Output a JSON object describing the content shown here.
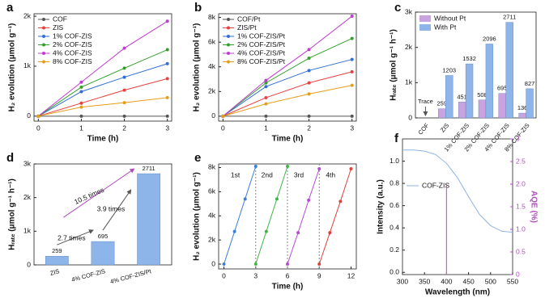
{
  "chart_data": [
    {
      "type": "line",
      "panel": "a",
      "x_label": "Time (h)",
      "y_label": "H₂ evolution (μmol g⁻¹)",
      "x": [
        0,
        1,
        2,
        3
      ],
      "xlim": [
        -0.1,
        3.1
      ],
      "xticks": [
        0,
        1,
        2,
        3
      ],
      "ylim": [
        -100,
        2050
      ],
      "yticks": [
        0,
        {
          "value": 1000,
          "label": "1k"
        },
        {
          "value": 2000,
          "label": "2k"
        }
      ],
      "legend": "upper left",
      "series": [
        {
          "name": "COF",
          "color": "#555555",
          "values": [
            0,
            0,
            0,
            0
          ]
        },
        {
          "name": "ZIS",
          "color": "#e8413d",
          "values": [
            0,
            260,
            520,
            750
          ]
        },
        {
          "name": "1% COF-ZIS",
          "color": "#2f6fd6",
          "values": [
            0,
            490,
            780,
            1050
          ]
        },
        {
          "name": "2% COF-ZIS",
          "color": "#33a02c",
          "values": [
            0,
            580,
            960,
            1330
          ]
        },
        {
          "name": "4% COF-ZIS",
          "color": "#c13bd1",
          "values": [
            0,
            680,
            1360,
            1900
          ]
        },
        {
          "name": "8% COF-ZIS",
          "color": "#e69d17",
          "values": [
            0,
            180,
            270,
            370
          ]
        }
      ]
    },
    {
      "type": "line",
      "panel": "b",
      "x_label": "Time (h)",
      "y_label": "H₂ evolution (μmol g⁻¹)",
      "x": [
        0,
        1,
        2,
        3
      ],
      "xlim": [
        -0.1,
        3.1
      ],
      "xticks": [
        0,
        1,
        2,
        3
      ],
      "ylim": [
        -400,
        8300
      ],
      "yticks": [
        0,
        {
          "value": 2000,
          "label": "2k"
        },
        {
          "value": 4000,
          "label": "4k"
        },
        {
          "value": 6000,
          "label": "6k"
        },
        {
          "value": 8000,
          "label": "8k"
        }
      ],
      "legend": "upper left",
      "series": [
        {
          "name": "COF/Pt",
          "color": "#555555",
          "values": [
            0,
            0,
            0,
            0
          ]
        },
        {
          "name": "ZIS/Pt",
          "color": "#e8413d",
          "values": [
            0,
            1500,
            2700,
            3600
          ]
        },
        {
          "name": "1% COF-ZIS/Pt",
          "color": "#2f6fd6",
          "values": [
            0,
            2400,
            3700,
            4600
          ]
        },
        {
          "name": "2% COF-ZIS/Pt",
          "color": "#33a02c",
          "values": [
            0,
            2700,
            4700,
            6300
          ]
        },
        {
          "name": "4% COF-ZIS/Pt",
          "color": "#c13bd1",
          "values": [
            0,
            2900,
            5400,
            8100
          ]
        },
        {
          "name": "8% COF-ZIS/Pt",
          "color": "#e69d17",
          "values": [
            0,
            1000,
            1800,
            2500
          ]
        }
      ]
    },
    {
      "type": "bar",
      "panel": "c",
      "y_label": "Hᵣₐₜₑ (μmol g⁻¹ h⁻¹)",
      "categories": [
        "COF",
        "ZIS",
        "1% COF-ZIS",
        "2% COF-ZIS",
        "4% COF-ZIS",
        "8% COF-ZIS"
      ],
      "ylim": [
        0,
        3000
      ],
      "yticks": [
        0,
        {
          "value": 1000,
          "label": "1k"
        },
        {
          "value": 2000,
          "label": "2k"
        },
        {
          "value": 3000,
          "label": "3k"
        }
      ],
      "legend": "upper left",
      "annotations": [
        "Trace"
      ],
      "series": [
        {
          "name": "Without Pt",
          "color": "#c9a2e0",
          "values": [
            null,
            259,
            451,
            508,
            695,
            136
          ]
        },
        {
          "name": "With Pt",
          "color": "#8db5ea",
          "values": [
            null,
            1203,
            1532,
            2096,
            2711,
            827
          ]
        }
      ]
    },
    {
      "type": "bar",
      "panel": "d",
      "y_label": "Hᵣₐₜₑ (μmol g⁻¹ h⁻¹)",
      "categories": [
        "ZIS",
        "4% COF-ZIS",
        "4% COF-ZIS/Pt"
      ],
      "values": [
        259,
        695,
        2711
      ],
      "color": "#8db5ea",
      "ylim": [
        0,
        3000
      ],
      "yticks": [
        0,
        {
          "value": 1000,
          "label": "1k"
        },
        {
          "value": 2000,
          "label": "2k"
        },
        {
          "value": 3000,
          "label": "3k"
        }
      ],
      "annotations": [
        "2.7 times",
        "3.9 times",
        "10.5 times"
      ]
    },
    {
      "type": "line",
      "panel": "e",
      "x_label": "Time (h)",
      "y_label": "H₂ evolution (μmol g⁻¹)",
      "xlim": [
        -0.5,
        12.5
      ],
      "xticks": [
        0,
        3,
        6,
        9,
        12
      ],
      "ylim": [
        -400,
        8300
      ],
      "yticks": [
        0,
        {
          "value": 2000,
          "label": "2k"
        },
        {
          "value": 4000,
          "label": "4k"
        },
        {
          "value": 6000,
          "label": "6k"
        },
        {
          "value": 8000,
          "label": "8k"
        }
      ],
      "series": [
        {
          "name": "1st",
          "color": "#3b7fd9",
          "x": [
            0,
            1,
            2,
            3
          ],
          "values": [
            0,
            2700,
            5400,
            8100
          ]
        },
        {
          "name": "2nd",
          "color": "#42b548",
          "x": [
            3,
            4,
            5,
            6
          ],
          "values": [
            0,
            2700,
            5400,
            8100
          ]
        },
        {
          "name": "3rd",
          "color": "#b64cd1",
          "x": [
            6,
            7,
            8,
            9
          ],
          "values": [
            0,
            2600,
            5300,
            7900
          ]
        },
        {
          "name": "4th",
          "color": "#e0413a",
          "x": [
            9,
            10,
            11,
            12
          ],
          "values": [
            0,
            2600,
            5200,
            7900
          ]
        }
      ]
    },
    {
      "type": "line",
      "panel": "f",
      "x_label": "Wavelength (nm)",
      "y_label": "Intensity (a.u.)",
      "y2_label": "AQE (%)",
      "x": [
        300,
        325,
        350,
        375,
        400,
        425,
        450,
        475,
        500,
        525,
        550
      ],
      "xlim": [
        300,
        550
      ],
      "xticks": [
        300,
        350,
        400,
        450,
        500,
        550
      ],
      "ylim": [
        -0.02,
        1.2
      ],
      "yticks": [
        {
          "value": 0,
          "label": "0.0"
        },
        0.2,
        0.4,
        0.6,
        0.8,
        {
          "value": 1,
          "label": "1.0"
        }
      ],
      "y2lim": [
        0,
        3
      ],
      "y2ticks": [
        0,
        0.5,
        {
          "value": 1,
          "label": "1.0"
        },
        1.5,
        {
          "value": 2,
          "label": "2.0"
        },
        2.5,
        3
      ],
      "legend": "center left",
      "series": [
        {
          "name": "COF-ZIS",
          "color": "#8fb4e6",
          "values": [
            1.1,
            1.1,
            1.09,
            1.06,
            0.98,
            0.85,
            0.68,
            0.52,
            0.42,
            0.37,
            0.36
          ]
        }
      ],
      "aqe": {
        "x": 400,
        "value": 2.0,
        "color": "#d65ec6"
      }
    }
  ]
}
